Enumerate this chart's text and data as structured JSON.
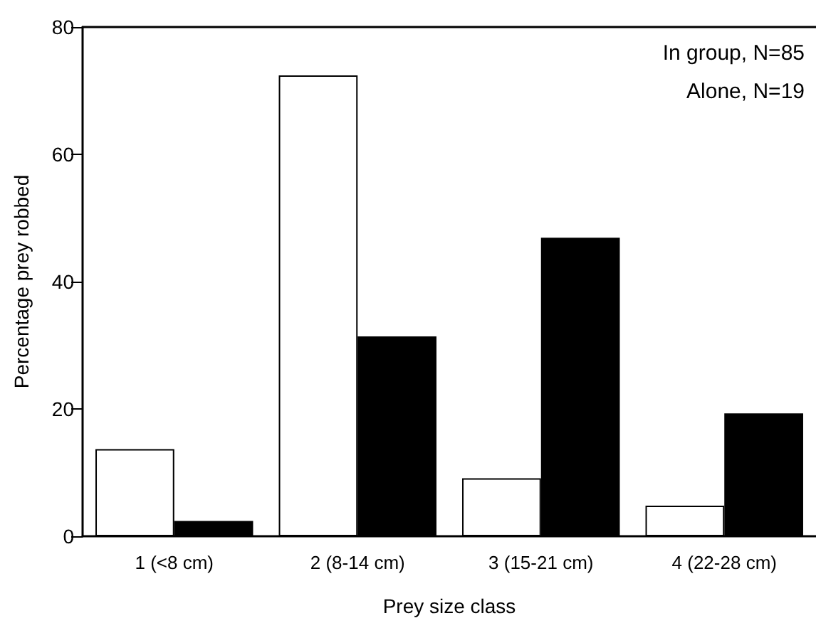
{
  "chart_data": {
    "type": "bar",
    "xlabel": "Prey size class",
    "ylabel": "Percentage prey robbed",
    "categories": [
      "1 (<8 cm)",
      "2 (8-14 cm)",
      "3 (15-21 cm)",
      "4 (22-28 cm)"
    ],
    "series": [
      {
        "color": "#ffffff",
        "values": [
          13.7,
          72.4,
          9.1,
          4.8
        ]
      },
      {
        "color": "#000000",
        "values": [
          2.4,
          31.4,
          46.9,
          19.3
        ]
      }
    ],
    "ylim": [
      0,
      80
    ],
    "yticks": [
      0,
      20,
      40,
      60,
      80
    ],
    "grid": false,
    "annotations": [
      "In group, N=85",
      "Alone, N=19"
    ]
  }
}
